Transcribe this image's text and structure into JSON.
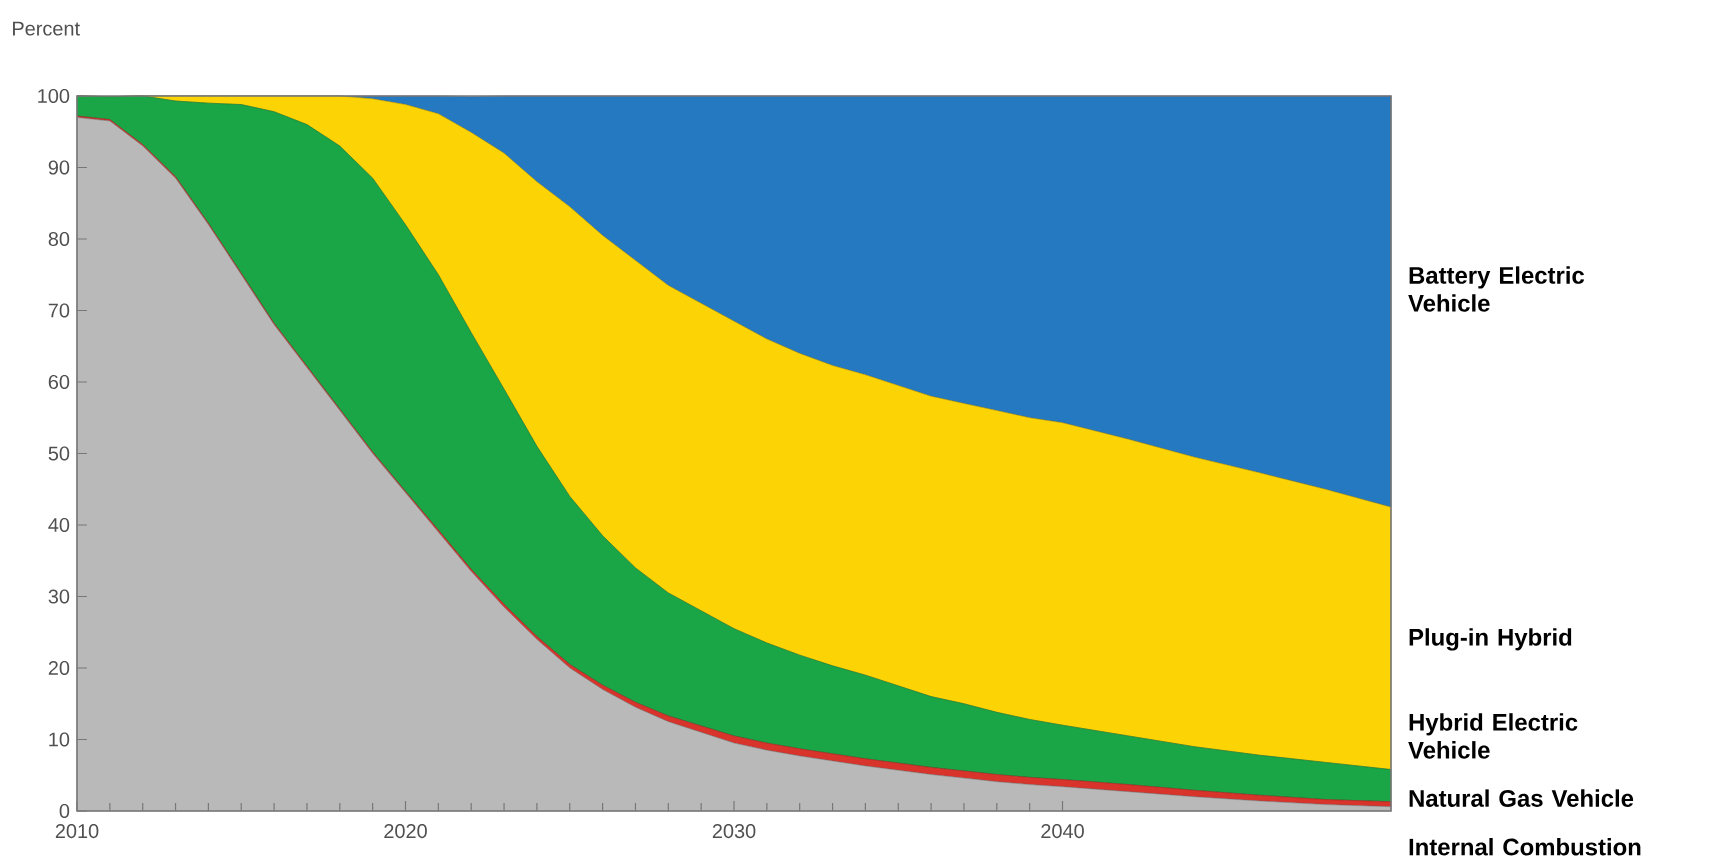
{
  "chart_data": {
    "type": "area",
    "stacked": true,
    "ylabel": "Percent",
    "x": [
      2010,
      2011,
      2012,
      2013,
      2014,
      2015,
      2016,
      2017,
      2018,
      2019,
      2020,
      2021,
      2022,
      2023,
      2024,
      2025,
      2026,
      2027,
      2028,
      2029,
      2030,
      2031,
      2032,
      2033,
      2034,
      2035,
      2036,
      2037,
      2038,
      2039,
      2040,
      2042,
      2044,
      2046,
      2048,
      2050
    ],
    "series": [
      {
        "name": "Internal Combustion",
        "color": "#b9b9b9",
        "values": [
          97,
          96.5,
          93,
          88.5,
          82,
          75,
          68,
          62,
          56,
          50,
          44.5,
          39,
          33.5,
          28.5,
          24,
          20,
          17,
          14.5,
          12.5,
          11,
          9.5,
          8.5,
          7.7,
          7,
          6.3,
          5.7,
          5.1,
          4.6,
          4.1,
          3.7,
          3.4,
          2.7,
          2,
          1.4,
          0.9,
          0.6
        ]
      },
      {
        "name": "Natural Gas Vehicle",
        "color": "#d9342b",
        "values": [
          0.2,
          0.2,
          0.2,
          0.2,
          0.2,
          0.2,
          0.2,
          0.2,
          0.2,
          0.2,
          0.2,
          0.3,
          0.3,
          0.4,
          0.4,
          0.5,
          0.6,
          0.7,
          0.8,
          0.9,
          1,
          1,
          1,
          1,
          1,
          1,
          1,
          1,
          1,
          1,
          1,
          1,
          0.9,
          0.8,
          0.7,
          0.7
        ]
      },
      {
        "name": "Hybrid Electric Vehicle",
        "color": "#1aa646",
        "values": [
          2.8,
          3.2,
          6.8,
          10.6,
          16.8,
          23.6,
          29.6,
          33.8,
          36.8,
          38.3,
          37.3,
          35.7,
          33.1,
          30.1,
          26.6,
          23.5,
          20.9,
          18.8,
          17.2,
          16.1,
          15,
          14,
          13.1,
          12.3,
          11.7,
          10.8,
          9.9,
          9.4,
          8.7,
          8.1,
          7.6,
          6.8,
          6.1,
          5.6,
          5.2,
          4.5
        ]
      },
      {
        "name": "Plug-in Hybrid",
        "color": "#fcd406",
        "values": [
          0,
          0,
          0,
          0.7,
          1,
          1.2,
          2.2,
          4,
          7,
          11.1,
          16.8,
          22.5,
          28,
          33,
          37,
          40.5,
          42,
          43,
          43,
          43,
          43,
          42.5,
          42.2,
          42,
          42,
          42,
          42,
          42,
          42.2,
          42.2,
          42.3,
          41.5,
          40.5,
          39.5,
          38.2,
          36.7
        ]
      },
      {
        "name": "Battery Electric Vehicle",
        "color": "#2479c1",
        "values": [
          0,
          0,
          0,
          0,
          0,
          0,
          0,
          0,
          0,
          0.4,
          1.2,
          2.5,
          5,
          8,
          12,
          15.5,
          19.5,
          23,
          26.5,
          29,
          31.5,
          34,
          36,
          37.7,
          39,
          40.5,
          42,
          43,
          44,
          45,
          45.7,
          48,
          50.5,
          52.7,
          55,
          57.5
        ]
      }
    ],
    "xlim": [
      2010,
      2050
    ],
    "xticks": [
      2010,
      2020,
      2030,
      2040
    ],
    "ylim": [
      0,
      100
    ],
    "yticks": [
      0,
      10,
      20,
      30,
      40,
      50,
      60,
      70,
      80,
      90,
      100
    ],
    "grid": false,
    "legend": false
  }
}
